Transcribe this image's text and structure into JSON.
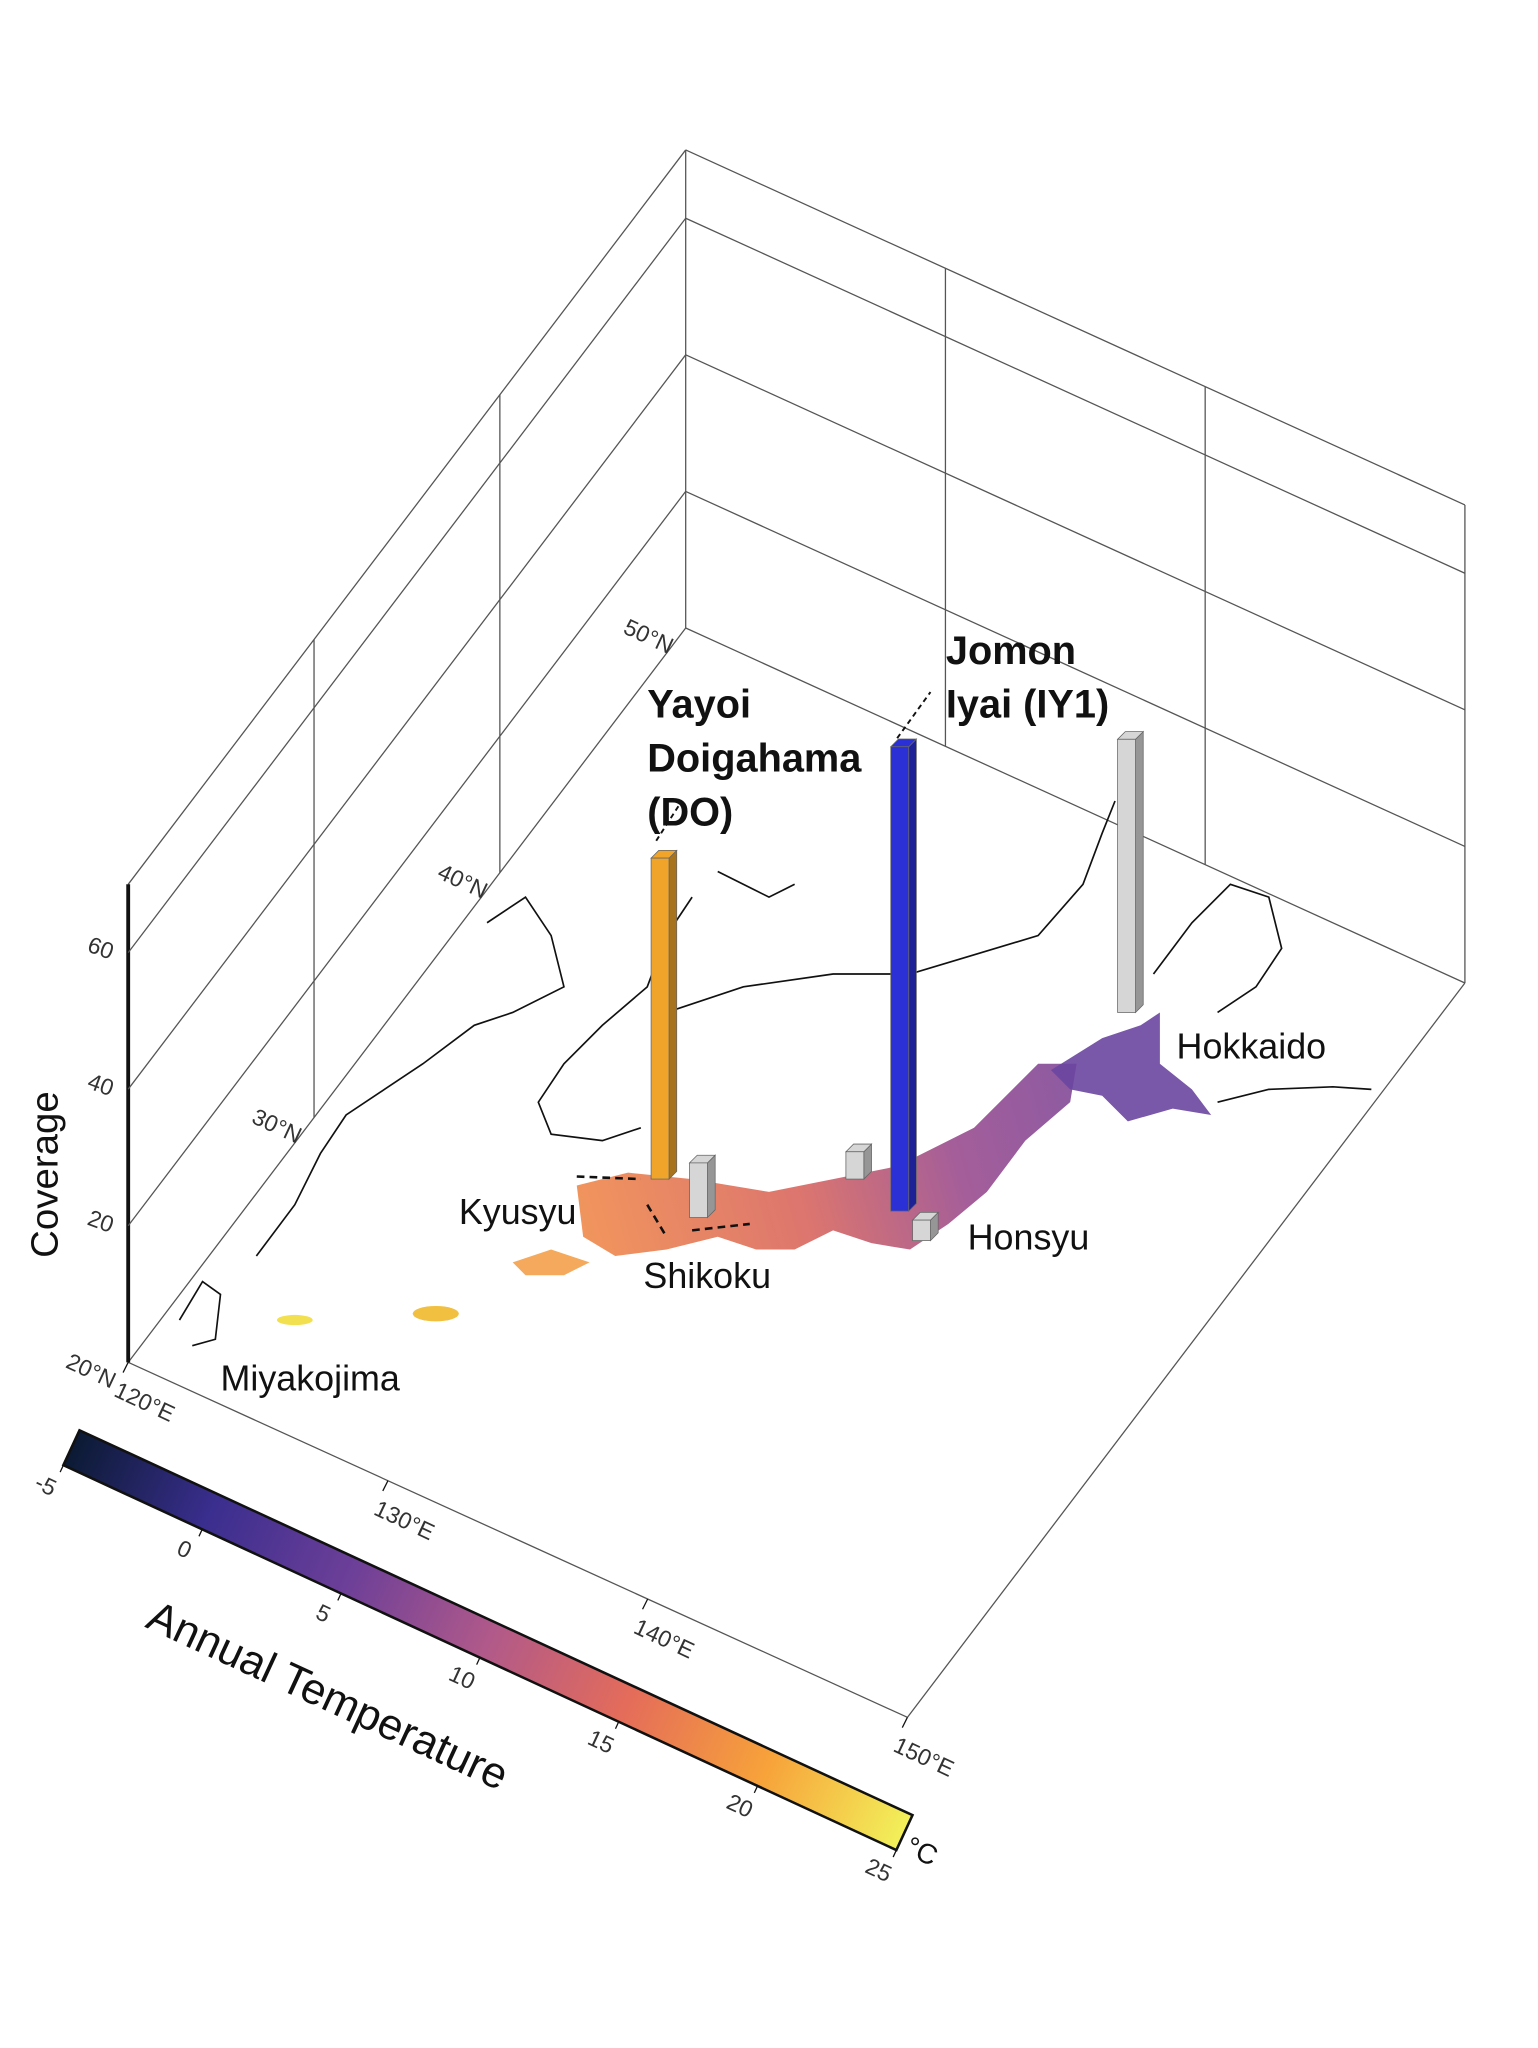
{
  "chart_data": {
    "type": "bar3d",
    "zlabel": "Coverage",
    "zlim": [
      0,
      70
    ],
    "zticks": [
      20,
      40,
      60
    ],
    "xlim": [
      120,
      150
    ],
    "xticks": [
      {
        "value": 120,
        "label": "120°E"
      },
      {
        "value": 130,
        "label": "130°E"
      },
      {
        "value": 140,
        "label": "140°E"
      },
      {
        "value": 150,
        "label": "150°E"
      }
    ],
    "ylim": [
      20,
      50
    ],
    "yticks": [
      {
        "value": 20,
        "label": "20°N"
      },
      {
        "value": 30,
        "label": "30°N"
      },
      {
        "value": 40,
        "label": "40°N"
      },
      {
        "value": 50,
        "label": "50°N"
      }
    ],
    "bars": [
      {
        "label": [
          "Yayoi",
          "Doigahama",
          "(DO)"
        ],
        "color": "#f0a52a",
        "value": 47
      },
      {
        "label": [
          "Jomon",
          "Iyai (IY1)"
        ],
        "color": "#2b2fd6",
        "value": 68
      },
      {
        "color": "#d6d6d6",
        "value": 40
      },
      {
        "color": "#d6d6d6",
        "value": 8
      },
      {
        "color": "#d6d6d6",
        "value": 4
      },
      {
        "color": "#d6d6d6",
        "value": 3
      }
    ],
    "regions": [
      "Hokkaido",
      "Kyusyu",
      "Shikoku",
      "Honsyu",
      "Miyakojima"
    ],
    "colorbar": {
      "label": "Annual Temperature",
      "unit": "°C",
      "lim": [
        -5,
        25
      ],
      "ticks": [
        -5,
        0,
        5,
        10,
        15,
        20,
        25
      ],
      "colors": [
        "#0b1a33",
        "#3a2e8e",
        "#6c3f98",
        "#b0598a",
        "#e46c5a",
        "#f7a23a",
        "#f2f05a"
      ]
    }
  }
}
